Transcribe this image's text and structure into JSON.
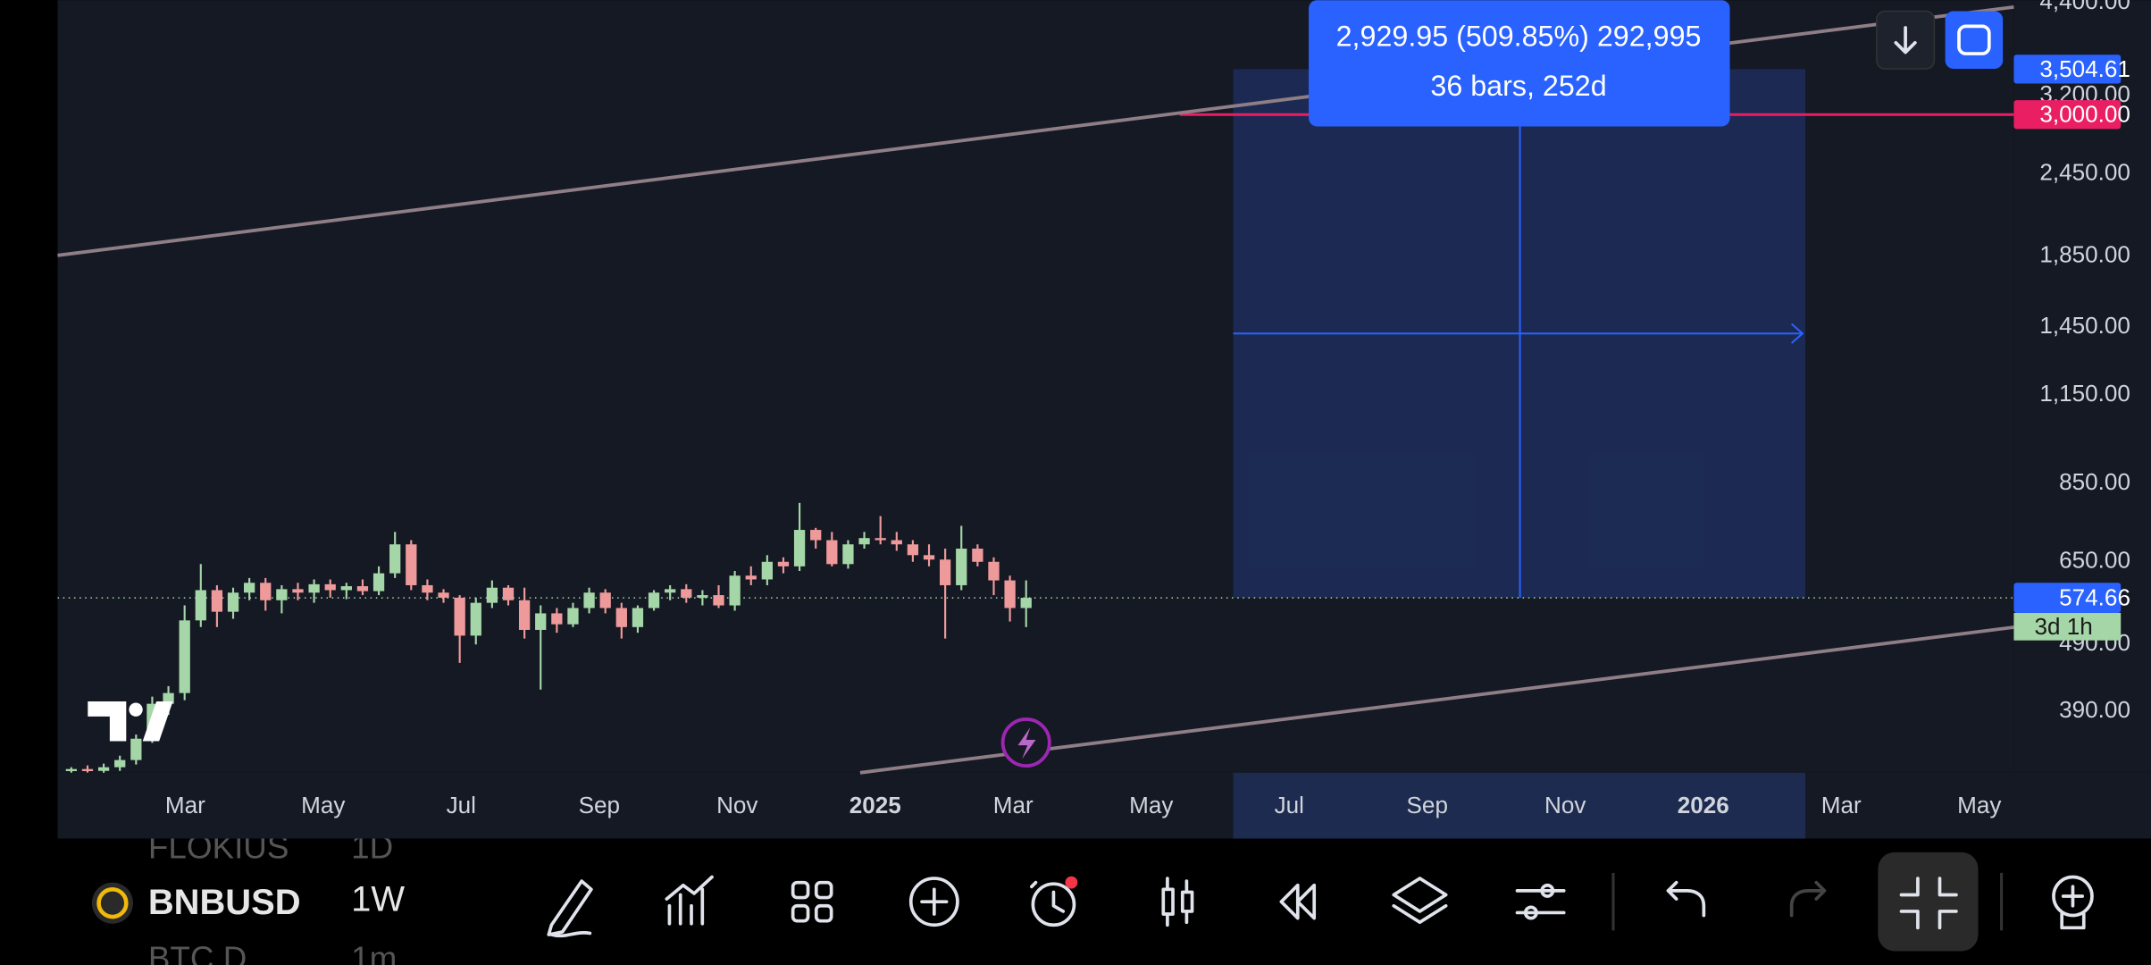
{
  "toolbar": {
    "symbol": "BNBUSD",
    "interval": "1W",
    "faded_symbol_top": "FLOKIUS",
    "faded_interval_top": "1D",
    "faded_symbol_bottom": "BTC.D",
    "faded_interval_bottom": "1m"
  },
  "chart": {
    "type": "candlestick",
    "scale": "log",
    "up_color": "#a5d6a7",
    "down_color": "#ef9a9a",
    "ylim": [
      316,
      4437
    ],
    "yticks": [
      {
        "value": 4400,
        "label": "4,400.00"
      },
      {
        "value": 3200,
        "label": "3,200.00"
      },
      {
        "value": 2450,
        "label": "2,450.00"
      },
      {
        "value": 1850,
        "label": "1,850.00"
      },
      {
        "value": 1450,
        "label": "1,450.00"
      },
      {
        "value": 1150,
        "label": "1,150.00"
      },
      {
        "value": 850,
        "label": "850.00"
      },
      {
        "value": 650,
        "label": "650.00"
      },
      {
        "value": 490,
        "label": "490.00"
      },
      {
        "value": 390,
        "label": "390.00"
      }
    ],
    "xticks": [
      "Mar",
      "May",
      "Jul",
      "Sep",
      "Nov",
      "2025",
      "Mar",
      "May",
      "Jul",
      "Sep",
      "Nov",
      "2026",
      "Mar",
      "May"
    ],
    "candles": [
      [
        318,
        322,
        314,
        320
      ],
      [
        320,
        324,
        316,
        318
      ],
      [
        318,
        326,
        315,
        322
      ],
      [
        322,
        335,
        318,
        330
      ],
      [
        330,
        360,
        325,
        355
      ],
      [
        355,
        410,
        350,
        400
      ],
      [
        400,
        425,
        385,
        415
      ],
      [
        415,
        560,
        405,
        532
      ],
      [
        532,
        645,
        520,
        590
      ],
      [
        590,
        600,
        520,
        548
      ],
      [
        548,
        595,
        535,
        585
      ],
      [
        585,
        615,
        570,
        605
      ],
      [
        605,
        615,
        550,
        570
      ],
      [
        570,
        600,
        545,
        592
      ],
      [
        592,
        605,
        570,
        585
      ],
      [
        585,
        612,
        565,
        602
      ],
      [
        602,
        612,
        575,
        590
      ],
      [
        590,
        605,
        572,
        598
      ],
      [
        598,
        612,
        580,
        588
      ],
      [
        588,
        640,
        580,
        625
      ],
      [
        625,
        720,
        615,
        690
      ],
      [
        690,
        700,
        590,
        600
      ],
      [
        600,
        612,
        570,
        585
      ],
      [
        585,
        592,
        565,
        575
      ],
      [
        575,
        580,
        460,
        505
      ],
      [
        505,
        575,
        490,
        565
      ],
      [
        565,
        610,
        555,
        595
      ],
      [
        595,
        600,
        560,
        570
      ],
      [
        570,
        595,
        500,
        515
      ],
      [
        515,
        560,
        420,
        545
      ],
      [
        545,
        555,
        510,
        525
      ],
      [
        525,
        565,
        520,
        555
      ],
      [
        555,
        595,
        545,
        585
      ],
      [
        585,
        592,
        545,
        555
      ],
      [
        555,
        565,
        500,
        520
      ],
      [
        520,
        560,
        510,
        555
      ],
      [
        555,
        590,
        550,
        585
      ],
      [
        585,
        600,
        570,
        592
      ],
      [
        592,
        602,
        565,
        575
      ],
      [
        575,
        590,
        560,
        580
      ],
      [
        580,
        600,
        555,
        560
      ],
      [
        560,
        630,
        550,
        620
      ],
      [
        620,
        640,
        600,
        612
      ],
      [
        612,
        665,
        600,
        650
      ],
      [
        650,
        660,
        625,
        640
      ],
      [
        640,
        795,
        630,
        725
      ],
      [
        725,
        730,
        680,
        700
      ],
      [
        700,
        720,
        640,
        645
      ],
      [
        645,
        700,
        635,
        690
      ],
      [
        690,
        720,
        680,
        705
      ],
      [
        705,
        760,
        690,
        700
      ],
      [
        700,
        720,
        675,
        690
      ],
      [
        690,
        700,
        650,
        665
      ],
      [
        665,
        690,
        640,
        655
      ],
      [
        655,
        680,
        500,
        600
      ],
      [
        600,
        735,
        590,
        680
      ],
      [
        680,
        690,
        640,
        650
      ],
      [
        650,
        660,
        580,
        610
      ],
      [
        610,
        620,
        530,
        555
      ],
      [
        555,
        610,
        520,
        574.66
      ]
    ],
    "current_price": 574.66,
    "countdown": "3d 1h",
    "alert_price": {
      "value": 3000,
      "label": "3,000.00"
    },
    "target_price": {
      "value": 3504.61,
      "label": "3,504.61"
    },
    "measure": {
      "line1": "2,929.95 (509.85%) 292,995",
      "line2": "36 bars, 252d"
    }
  }
}
